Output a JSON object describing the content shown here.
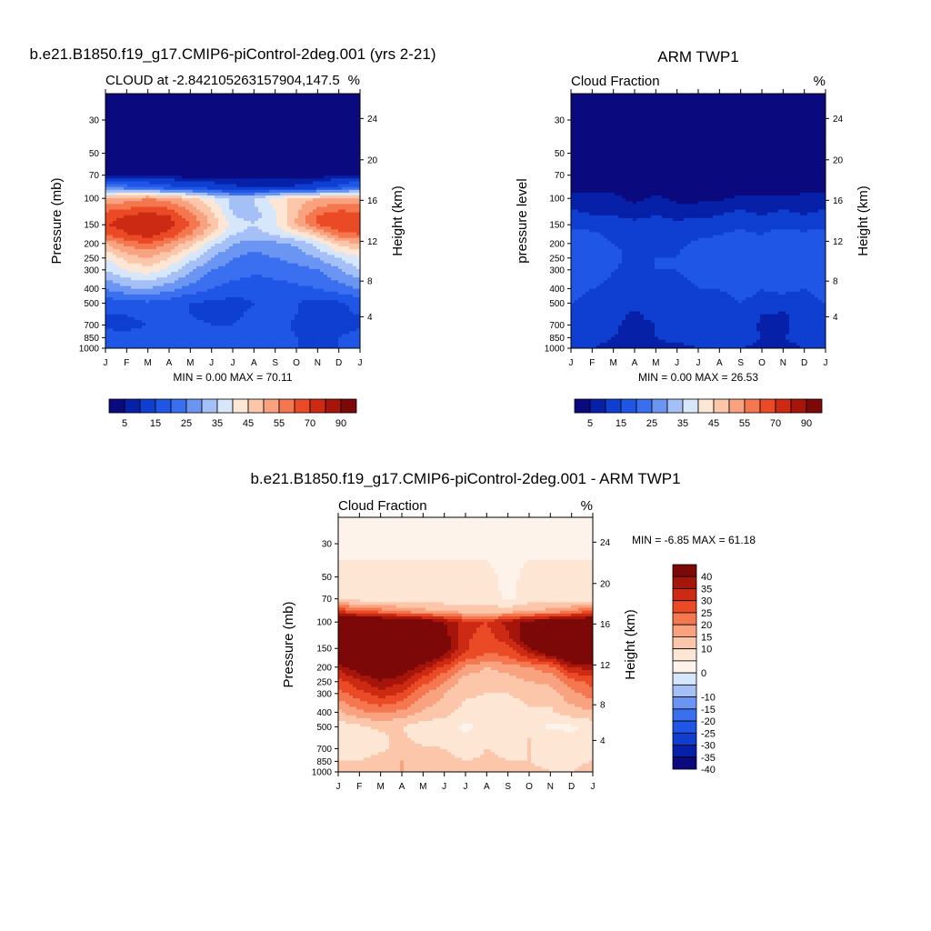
{
  "colors": {
    "abs_scale": [
      "#0a0a7e",
      "#0720a8",
      "#0e3fd0",
      "#1f56e6",
      "#3a6ff0",
      "#6b95f3",
      "#a5c0f6",
      "#d6e6fb",
      "#fde6d4",
      "#fbc6a9",
      "#f8a280",
      "#f4774f",
      "#ea4a25",
      "#cc2a12",
      "#a5150a",
      "#7d0808"
    ],
    "diff_scale": [
      "#0a0a7e",
      "#0720a8",
      "#0e3fd0",
      "#1f56e6",
      "#3a6ff0",
      "#6b95f3",
      "#a5c0f6",
      "#d6e6fb",
      "#fdf3ea",
      "#fde6d4",
      "#fbc6a9",
      "#f8a280",
      "#f4774f",
      "#ea4a25",
      "#cc2a12",
      "#a5150a",
      "#7d0808"
    ]
  },
  "charts": {
    "model": {
      "title": "b.e21.B1850.f19_g17.CMIP6-piControl-2deg.001 (yrs 2-21)",
      "left_label": "CLOUD at -2.842105263157904,147.5",
      "units": "%",
      "ylabel": "Pressure (mb)",
      "ylabel_right": "Height (km)",
      "minmax": "MIN =   0.00 MAX =  70.11"
    },
    "obs": {
      "title": "ARM TWP1",
      "left_label": "Cloud Fraction",
      "units": "%",
      "ylabel": "pressure level",
      "ylabel_right": "Height (km)",
      "minmax": "MIN =   0.00 MAX =  26.53"
    },
    "diff": {
      "title": "b.e21.B1850.f19_g17.CMIP6-piControl-2deg.001 - ARM TWP1",
      "left_label": "Cloud Fraction",
      "units": "%",
      "ylabel": "Pressure (mb)",
      "ylabel_right": "Height (km)",
      "minmax": "MIN =  -6.85 MAX =  61.18"
    }
  },
  "chart_data": [
    {
      "type": "heatmap",
      "name": "model",
      "title": "b.e21.B1850.f19_g17.CMIP6-piControl-2deg.001 (yrs 2-21)",
      "subtitle_left": "CLOUD at -2.842105263157904,147.5",
      "subtitle_right": "%",
      "xlabel": "",
      "ylabel": "Pressure (mb)",
      "ylabel_right": "Height (km)",
      "x_ticks": [
        "J",
        "F",
        "M",
        "A",
        "M",
        "J",
        "J",
        "A",
        "S",
        "O",
        "N",
        "D",
        "J"
      ],
      "y_ticks": [
        30,
        50,
        70,
        100,
        150,
        200,
        250,
        300,
        400,
        500,
        700,
        850,
        1000
      ],
      "y_right_ticks": [
        24,
        20,
        16,
        12,
        8,
        4
      ],
      "ylim": [
        1000,
        20
      ],
      "min": 0.0,
      "max": 70.11,
      "levels": [
        2.5,
        5,
        10,
        15,
        20,
        25,
        30,
        35,
        40,
        45,
        50,
        55,
        60,
        70,
        80,
        90
      ],
      "colorbar_labels": [
        5,
        15,
        25,
        35,
        45,
        55,
        70,
        90
      ],
      "grid_levels": [
        20,
        30,
        50,
        70,
        85,
        100,
        130,
        150,
        175,
        200,
        250,
        300,
        400,
        500,
        600,
        700,
        850,
        1000
      ],
      "grid_values": [
        [
          1,
          1,
          1,
          1,
          1,
          1,
          1,
          1,
          1,
          1,
          1,
          1,
          1
        ],
        [
          1,
          1,
          1,
          1,
          1,
          1,
          1,
          1,
          1,
          1,
          1,
          1,
          1
        ],
        [
          1,
          1,
          1,
          1,
          1,
          1,
          1,
          1,
          1,
          1,
          1,
          1,
          1
        ],
        [
          2,
          2,
          2,
          1,
          1,
          1,
          1,
          1,
          1,
          1,
          1,
          2,
          2
        ],
        [
          20,
          18,
          16,
          12,
          10,
          8,
          6,
          5,
          5,
          6,
          8,
          12,
          18
        ],
        [
          45,
          47,
          50,
          48,
          42,
          35,
          28,
          30,
          38,
          42,
          45,
          47,
          45
        ],
        [
          58,
          60,
          62,
          60,
          52,
          42,
          30,
          28,
          34,
          45,
          55,
          58,
          58
        ],
        [
          60,
          62,
          65,
          62,
          55,
          44,
          33,
          30,
          35,
          45,
          55,
          60,
          60
        ],
        [
          55,
          60,
          62,
          58,
          50,
          40,
          30,
          28,
          30,
          35,
          42,
          52,
          55
        ],
        [
          45,
          52,
          55,
          50,
          42,
          32,
          25,
          22,
          24,
          26,
          32,
          42,
          45
        ],
        [
          35,
          42,
          45,
          40,
          32,
          25,
          20,
          18,
          20,
          22,
          25,
          30,
          35
        ],
        [
          30,
          35,
          38,
          33,
          26,
          20,
          18,
          16,
          17,
          18,
          20,
          24,
          30
        ],
        [
          20,
          24,
          25,
          22,
          18,
          15,
          13,
          12,
          13,
          14,
          15,
          18,
          20
        ],
        [
          12,
          13,
          14,
          12,
          10,
          9,
          8,
          10,
          12,
          10,
          8,
          9,
          12
        ],
        [
          10,
          10,
          11,
          10,
          10,
          9,
          9,
          11,
          12,
          10,
          8,
          9,
          10
        ],
        [
          9,
          9,
          10,
          10,
          11,
          10,
          10,
          12,
          12,
          9,
          7,
          8,
          9
        ],
        [
          12,
          11,
          12,
          13,
          12,
          11,
          11,
          12,
          12,
          10,
          9,
          10,
          12
        ],
        [
          12,
          11,
          12,
          13,
          12,
          11,
          11,
          12,
          12,
          10,
          9,
          10,
          12
        ]
      ]
    },
    {
      "type": "heatmap",
      "name": "obs",
      "title": "ARM TWP1",
      "subtitle_left": "Cloud Fraction",
      "subtitle_right": "%",
      "xlabel": "",
      "ylabel": "pressure level",
      "ylabel_right": "Height (km)",
      "x_ticks": [
        "J",
        "F",
        "M",
        "A",
        "M",
        "J",
        "J",
        "A",
        "S",
        "O",
        "N",
        "D",
        "J"
      ],
      "y_ticks": [
        30,
        50,
        70,
        100,
        150,
        200,
        250,
        300,
        400,
        500,
        700,
        850,
        1000
      ],
      "y_right_ticks": [
        24,
        20,
        16,
        12,
        8,
        4
      ],
      "ylim": [
        1000,
        20
      ],
      "min": 0.0,
      "max": 26.53,
      "levels": [
        2.5,
        5,
        10,
        15,
        20,
        25,
        30,
        35,
        40,
        45,
        50,
        55,
        60,
        70,
        80,
        90
      ],
      "colorbar_labels": [
        5,
        15,
        25,
        35,
        45,
        55,
        70,
        90
      ],
      "grid_levels": [
        20,
        30,
        50,
        70,
        85,
        100,
        130,
        150,
        175,
        200,
        250,
        300,
        400,
        500,
        600,
        700,
        850,
        1000
      ],
      "grid_values": [
        [
          1,
          1,
          1,
          1,
          1,
          1,
          1,
          1,
          1,
          1,
          1,
          1,
          1
        ],
        [
          1,
          1,
          1,
          1,
          1,
          1,
          1,
          1,
          1,
          1,
          1,
          1,
          1
        ],
        [
          1,
          1,
          1,
          1,
          1,
          1,
          1,
          1,
          1,
          1,
          1,
          1,
          1
        ],
        [
          1,
          1,
          1,
          1,
          1,
          1,
          1,
          1,
          1,
          1,
          1,
          1,
          1
        ],
        [
          2,
          2,
          2,
          1,
          1,
          1,
          1,
          1,
          1,
          1,
          1,
          2,
          2
        ],
        [
          3,
          3,
          3,
          2,
          3,
          2,
          2,
          2,
          3,
          3,
          3,
          3,
          3
        ],
        [
          6,
          5,
          5,
          4,
          5,
          4,
          4,
          5,
          6,
          5,
          6,
          5,
          6
        ],
        [
          9,
          8,
          7,
          6,
          7,
          6,
          7,
          8,
          9,
          8,
          9,
          8,
          9
        ],
        [
          12,
          11,
          9,
          8,
          9,
          8,
          9,
          10,
          11,
          10,
          12,
          11,
          12
        ],
        [
          13,
          12,
          10,
          9,
          10,
          9,
          11,
          12,
          12,
          11,
          14,
          12,
          13
        ],
        [
          13,
          13,
          11,
          9,
          10,
          10,
          13,
          12,
          12,
          12,
          14,
          12,
          13
        ],
        [
          12,
          12,
          10,
          9,
          10,
          10,
          12,
          11,
          12,
          11,
          12,
          11,
          12
        ],
        [
          11,
          10,
          9,
          8,
          9,
          8,
          10,
          10,
          11,
          10,
          11,
          10,
          11
        ],
        [
          10,
          9,
          8,
          7,
          8,
          7,
          9,
          9,
          10,
          9,
          8,
          9,
          10
        ],
        [
          9,
          8,
          7,
          4,
          7,
          6,
          8,
          8,
          9,
          5,
          4,
          8,
          9
        ],
        [
          8,
          7,
          6,
          3,
          5,
          6,
          7,
          7,
          8,
          4,
          4,
          7,
          8
        ],
        [
          7,
          6,
          5,
          3,
          5,
          6,
          6,
          6,
          7,
          5,
          5,
          6,
          7
        ],
        [
          5,
          5,
          4,
          3,
          4,
          4,
          5,
          5,
          5,
          4,
          4,
          5,
          5
        ]
      ]
    },
    {
      "type": "heatmap",
      "name": "diff",
      "title": "b.e21.B1850.f19_g17.CMIP6-piControl-2deg.001 - ARM TWP1",
      "subtitle_left": "Cloud Fraction",
      "subtitle_right": "%",
      "xlabel": "",
      "ylabel": "Pressure (mb)",
      "ylabel_right": "Height (km)",
      "x_ticks": [
        "J",
        "F",
        "M",
        "A",
        "M",
        "J",
        "J",
        "A",
        "S",
        "O",
        "N",
        "D",
        "J"
      ],
      "y_ticks": [
        30,
        50,
        70,
        100,
        150,
        200,
        250,
        300,
        400,
        500,
        700,
        850,
        1000
      ],
      "y_right_ticks": [
        24,
        20,
        16,
        12,
        8,
        4
      ],
      "ylim": [
        1000,
        20
      ],
      "min": -6.85,
      "max": 61.18,
      "levels": [
        -40,
        -35,
        -30,
        -25,
        -20,
        -15,
        -10,
        -5,
        0,
        5,
        10,
        15,
        20,
        25,
        30,
        35,
        40
      ],
      "colorbar_labels": [
        40,
        35,
        30,
        25,
        20,
        15,
        10,
        0,
        -10,
        -15,
        -20,
        -25,
        -30,
        -35,
        -40
      ],
      "grid_levels": [
        20,
        30,
        50,
        70,
        85,
        100,
        130,
        150,
        175,
        200,
        250,
        300,
        400,
        500,
        600,
        700,
        850,
        1000
      ],
      "grid_values": [
        [
          -1,
          -1,
          -1,
          -1,
          -1,
          -1,
          -1,
          -1,
          -1,
          -1,
          -1,
          -1,
          -1
        ],
        [
          -1,
          -1,
          -1,
          -1,
          -1,
          -1,
          -1,
          -1,
          -1,
          -1,
          -1,
          -1,
          -1
        ],
        [
          1,
          1,
          1,
          1,
          1,
          1,
          1,
          1,
          -1,
          1,
          1,
          1,
          1
        ],
        [
          2,
          2,
          2,
          2,
          2,
          2,
          2,
          2,
          -1,
          2,
          2,
          2,
          2
        ],
        [
          25,
          22,
          18,
          14,
          12,
          10,
          8,
          8,
          8,
          10,
          12,
          15,
          22
        ],
        [
          45,
          46,
          47,
          46,
          42,
          35,
          27,
          25,
          32,
          38,
          43,
          46,
          45
        ],
        [
          52,
          55,
          57,
          56,
          47,
          38,
          26,
          22,
          28,
          40,
          49,
          53,
          52
        ],
        [
          51,
          54,
          58,
          56,
          48,
          38,
          26,
          21,
          23,
          34,
          46,
          52,
          51
        ],
        [
          43,
          49,
          53,
          50,
          41,
          32,
          21,
          18,
          19,
          25,
          30,
          41,
          43
        ],
        [
          32,
          40,
          45,
          41,
          32,
          23,
          14,
          10,
          12,
          15,
          18,
          30,
          32
        ],
        [
          22,
          29,
          34,
          31,
          22,
          15,
          7,
          6,
          8,
          10,
          11,
          18,
          22
        ],
        [
          18,
          23,
          28,
          24,
          16,
          10,
          6,
          5,
          5,
          7,
          8,
          13,
          18
        ],
        [
          9,
          14,
          16,
          14,
          9,
          7,
          3,
          2,
          2,
          4,
          4,
          8,
          9
        ],
        [
          2,
          4,
          6,
          5,
          2,
          2,
          -1,
          1,
          3,
          1,
          -1,
          -1,
          2
        ],
        [
          1,
          2,
          4,
          6,
          3,
          3,
          1,
          3,
          3,
          5,
          4,
          1,
          1
        ],
        [
          1,
          2,
          4,
          7,
          6,
          5,
          2,
          5,
          4,
          5,
          3,
          1,
          1
        ],
        [
          5,
          5,
          7,
          10,
          8,
          7,
          5,
          6,
          5,
          5,
          4,
          4,
          5
        ],
        [
          7,
          6,
          8,
          10,
          8,
          7,
          6,
          7,
          7,
          6,
          5,
          5,
          7
        ]
      ]
    }
  ]
}
